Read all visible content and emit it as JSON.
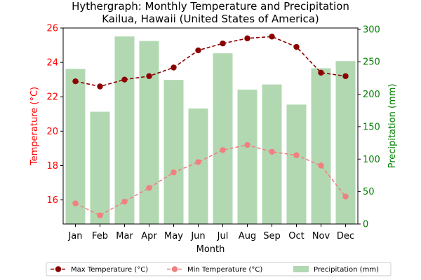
{
  "chart_data": {
    "type": "bar",
    "title": "Hythergraph: Monthly Temperature and Precipitation",
    "subtitle": "Kailua, Hawaii (United States of America)",
    "xlabel": "Month",
    "ylabel_left": "Temperature (°C)",
    "ylabel_right": "Precipitation (mm)",
    "categories": [
      "Jan",
      "Feb",
      "Mar",
      "Apr",
      "May",
      "Jun",
      "Jul",
      "Aug",
      "Sep",
      "Oct",
      "Nov",
      "Dec"
    ],
    "ylim_left": [
      14.6,
      26
    ],
    "yticks_left": [
      "16",
      "18",
      "20",
      "22",
      "24",
      "26"
    ],
    "ylim_right": [
      0,
      302
    ],
    "yticks_right": [
      "0",
      "50",
      "100",
      "150",
      "200",
      "250",
      "300"
    ],
    "grid": false,
    "legend_position": "bottom-center",
    "series": [
      {
        "name": "Max Temperature (°C)",
        "kind": "line",
        "axis": "left",
        "color": "#8b0000",
        "values": [
          22.9,
          22.6,
          23.0,
          23.2,
          23.7,
          24.7,
          25.1,
          25.4,
          25.5,
          24.9,
          23.4,
          23.2
        ]
      },
      {
        "name": "Min Temperature (°C)",
        "kind": "line",
        "axis": "left",
        "color": "#f08080",
        "values": [
          15.8,
          15.1,
          15.9,
          16.7,
          17.6,
          18.2,
          18.9,
          19.2,
          18.8,
          18.6,
          18.0,
          16.2
        ]
      },
      {
        "name": "Precipitation (mm)",
        "kind": "bar",
        "axis": "right",
        "color": "#b2d8b2",
        "values": [
          239,
          173,
          289,
          282,
          222,
          178,
          263,
          207,
          215,
          184,
          240,
          251
        ]
      }
    ],
    "colors": {
      "left_axis": "#ff0000",
      "right_axis": "#008000"
    }
  }
}
